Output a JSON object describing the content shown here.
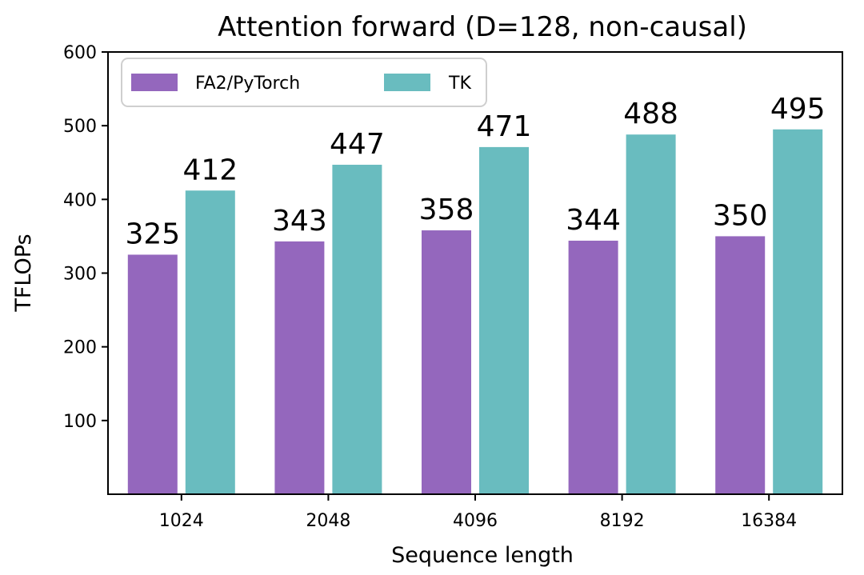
{
  "chart_data": {
    "type": "bar",
    "title": "Attention forward (D=128, non-causal)",
    "xlabel": "Sequence length",
    "ylabel": "TFLOPs",
    "categories": [
      "1024",
      "2048",
      "4096",
      "8192",
      "16384"
    ],
    "series": [
      {
        "name": "FA2/PyTorch",
        "values": [
          325,
          343,
          358,
          344,
          350
        ],
        "color": "#9467bd"
      },
      {
        "name": "TK",
        "values": [
          412,
          447,
          471,
          488,
          495
        ],
        "color": "#69bcbf"
      }
    ],
    "ylim": [
      0,
      600
    ],
    "yticks": [
      100,
      200,
      300,
      400,
      500,
      600
    ],
    "legend": "top-left",
    "grid": false
  }
}
